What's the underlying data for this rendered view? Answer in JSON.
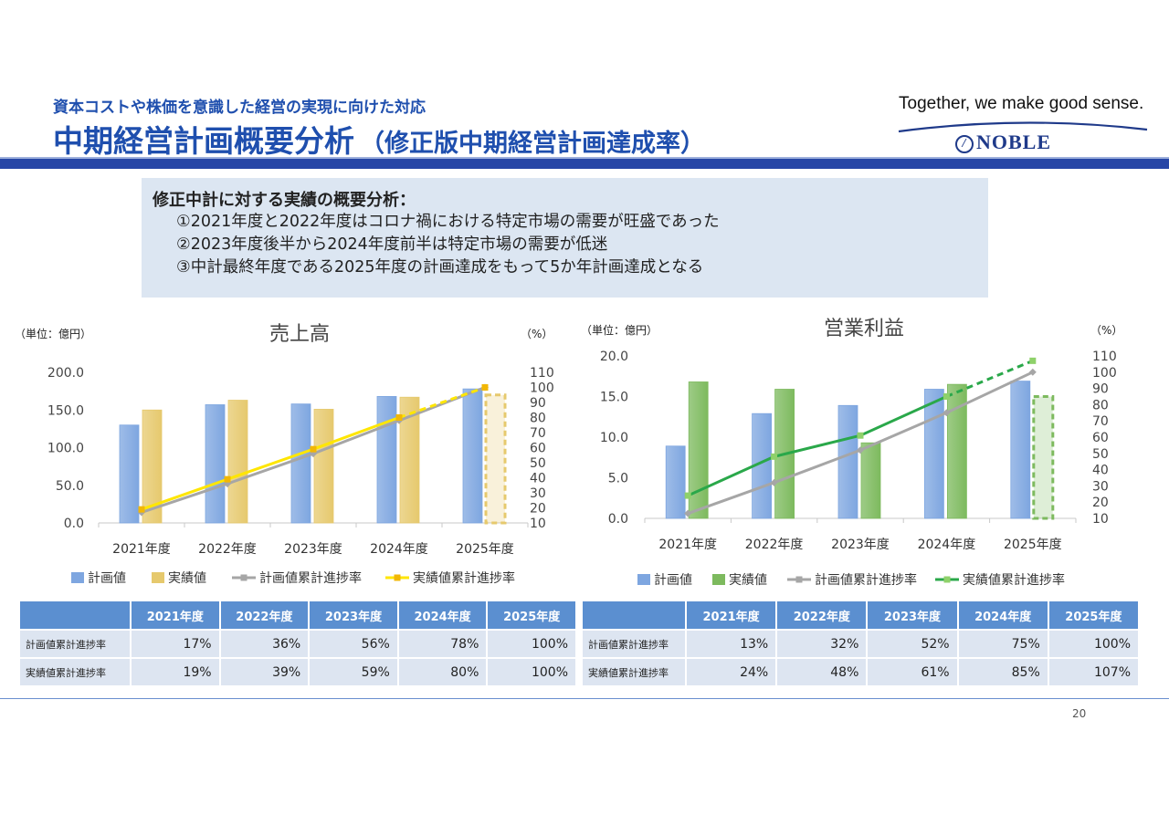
{
  "header": {
    "subtitle": "資本コストや株価を意識した経営の実現に向けた対応",
    "title": "中期経営計画概要分析",
    "title_paren": "（修正版中期経営計画達成率）",
    "tagline": "Together, we make good sense.",
    "logo_text": "NOBLE",
    "logo_mark": "/"
  },
  "summary": {
    "heading": "修正中計に対する実績の概要分析：",
    "items": [
      "①2021年度と2022年度はコロナ禍における特定市場の需要が旺盛であった",
      "②2023年度後半から2024年度前半は特定市場の需要が低迷",
      "③中計最終年度である2025年度の計画達成をもって5か年計画達成となる"
    ]
  },
  "chart_data": [
    {
      "type": "bar",
      "title": "売上高",
      "unit_left": "（単位：億円）",
      "unit_right": "（%）",
      "categories": [
        "2021年度",
        "2022年度",
        "2023年度",
        "2024年度",
        "2025年度"
      ],
      "ylim": [
        0,
        200
      ],
      "yticks": [
        "0.0",
        "50.0",
        "100.0",
        "150.0",
        "200.0"
      ],
      "y2lim": [
        10,
        110
      ],
      "y2ticks": [
        "10",
        "20",
        "30",
        "40",
        "50",
        "60",
        "70",
        "80",
        "90",
        "100",
        "110"
      ],
      "series": [
        {
          "name": "計画値",
          "kind": "bar",
          "color": "#7ea6e0",
          "values": [
            130,
            157,
            158,
            168,
            178
          ]
        },
        {
          "name": "実績値",
          "kind": "bar",
          "color": "#e6c96d",
          "values": [
            150,
            163,
            151,
            167,
            170
          ],
          "last_forecast": true
        },
        {
          "name": "計画値累計進捗率",
          "kind": "line",
          "axis": "right",
          "color": "#a6a6a6",
          "values": [
            17,
            36,
            56,
            78,
            100
          ]
        },
        {
          "name": "実績値累計進捗率",
          "kind": "line",
          "axis": "right",
          "color": "#ffe600",
          "marker_color": "#f2b705",
          "values": [
            19,
            39,
            59,
            80,
            100
          ],
          "last_forecast": true
        }
      ],
      "legend": "bottom",
      "grid": false
    },
    {
      "type": "bar",
      "title": "営業利益",
      "unit_left": "（単位：億円）",
      "unit_right": "（%）",
      "categories": [
        "2021年度",
        "2022年度",
        "2023年度",
        "2024年度",
        "2025年度"
      ],
      "ylim": [
        0,
        20
      ],
      "yticks": [
        "0.0",
        "5.0",
        "10.0",
        "15.0",
        "20.0"
      ],
      "y2lim": [
        10,
        110
      ],
      "y2ticks": [
        "10",
        "20",
        "30",
        "40",
        "50",
        "60",
        "70",
        "80",
        "90",
        "100",
        "110"
      ],
      "series": [
        {
          "name": "計画値",
          "kind": "bar",
          "color": "#7ea6e0",
          "values": [
            8.9,
            12.9,
            13.9,
            15.9,
            16.9
          ]
        },
        {
          "name": "実績値",
          "kind": "bar",
          "color": "#7dba5e",
          "values": [
            16.8,
            15.9,
            9.3,
            16.5,
            15.0
          ],
          "last_forecast": true
        },
        {
          "name": "計画値累計進捗率",
          "kind": "line",
          "axis": "right",
          "color": "#a6a6a6",
          "values": [
            13,
            32,
            52,
            75,
            100
          ]
        },
        {
          "name": "実績値累計進捗率",
          "kind": "line",
          "axis": "right",
          "color": "#2aa84a",
          "marker_color": "#8fd16a",
          "values": [
            24,
            48,
            61,
            85,
            107
          ],
          "last_forecast": true
        }
      ],
      "legend": "bottom",
      "grid": false
    }
  ],
  "tables": [
    {
      "headers": [
        "",
        "2021年度",
        "2022年度",
        "2023年度",
        "2024年度",
        "2025年度"
      ],
      "rows": [
        {
          "label": "計画値累計進捗率",
          "cells": [
            "17%",
            "36%",
            "56%",
            "78%",
            "100%"
          ]
        },
        {
          "label": "実績値累計進捗率",
          "cells": [
            "19%",
            "39%",
            "59%",
            "80%",
            "100%"
          ]
        }
      ]
    },
    {
      "headers": [
        "",
        "2021年度",
        "2022年度",
        "2023年度",
        "2024年度",
        "2025年度"
      ],
      "rows": [
        {
          "label": "計画値累計進捗率",
          "cells": [
            "13%",
            "32%",
            "52%",
            "75%",
            "100%"
          ]
        },
        {
          "label": "実績値累計進捗率",
          "cells": [
            "24%",
            "48%",
            "61%",
            "85%",
            "107%"
          ]
        }
      ]
    }
  ],
  "footer": {
    "page_number": "20"
  }
}
